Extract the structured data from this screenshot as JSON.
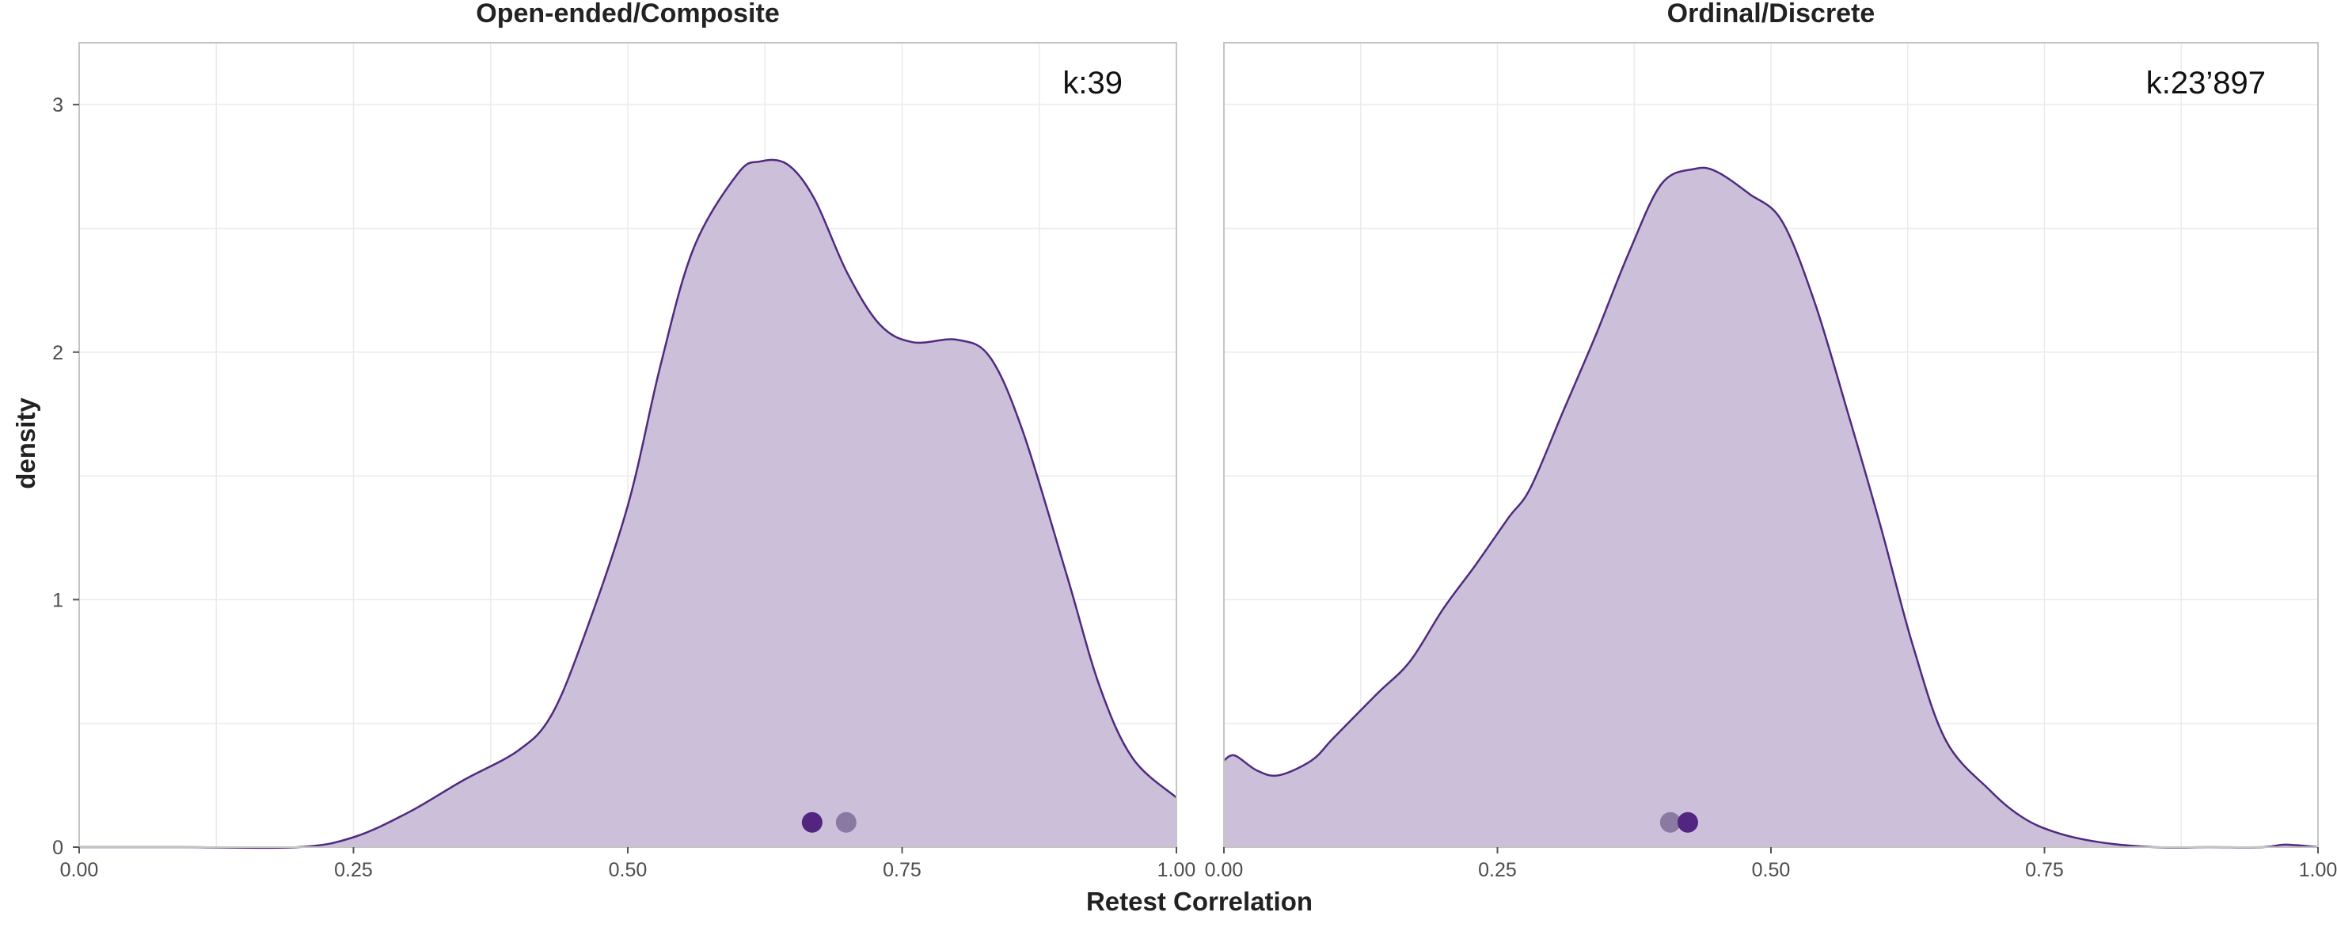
{
  "colors": {
    "fill": "#cbbfd9",
    "line": "#4f2a80",
    "point_dark": "#522680",
    "point_light": "#8a7aa3",
    "background": "#ffffff"
  },
  "axis": {
    "xlabel": "Retest Correlation",
    "ylabel": "density",
    "xlim": [
      0,
      1
    ],
    "ylim": [
      0,
      3.25
    ],
    "x_ticks": [
      0,
      0.25,
      0.5,
      0.75,
      1.0
    ],
    "x_tick_labels": [
      "0.00",
      "0.25",
      "0.50",
      "0.75",
      "1.00"
    ],
    "y_ticks": [
      0,
      1,
      2,
      3
    ],
    "y_tick_labels": [
      "0",
      "1",
      "2",
      "3"
    ]
  },
  "chart_data": [
    {
      "type": "area",
      "title": "Open-ended/Composite",
      "annotation": "k:39",
      "xlabel": "Retest Correlation",
      "ylabel": "density",
      "xlim": [
        0,
        1
      ],
      "ylim": [
        0,
        3.25
      ],
      "grid": true,
      "x": [
        0.0,
        0.1,
        0.2,
        0.25,
        0.3,
        0.35,
        0.4,
        0.43,
        0.46,
        0.5,
        0.53,
        0.56,
        0.6,
        0.62,
        0.645,
        0.67,
        0.7,
        0.73,
        0.76,
        0.8,
        0.83,
        0.86,
        0.9,
        0.93,
        0.96,
        1.0
      ],
      "y": [
        0.0,
        0.0,
        0.0,
        0.04,
        0.14,
        0.27,
        0.39,
        0.53,
        0.85,
        1.38,
        1.95,
        2.42,
        2.72,
        2.77,
        2.76,
        2.62,
        2.32,
        2.11,
        2.04,
        2.05,
        1.98,
        1.68,
        1.1,
        0.65,
        0.36,
        0.2
      ],
      "points": [
        {
          "x": 0.668,
          "y": 0.1,
          "color": "#522680"
        },
        {
          "x": 0.699,
          "y": 0.1,
          "color": "#8a7aa3"
        }
      ]
    },
    {
      "type": "area",
      "title": "Ordinal/Discrete",
      "annotation": "k:23’897",
      "xlabel": "Retest Correlation",
      "ylabel": "density",
      "xlim": [
        0,
        1
      ],
      "ylim": [
        0,
        3.25
      ],
      "grid": true,
      "x": [
        0.0,
        0.01,
        0.03,
        0.05,
        0.08,
        0.1,
        0.14,
        0.17,
        0.2,
        0.23,
        0.26,
        0.28,
        0.31,
        0.34,
        0.37,
        0.4,
        0.43,
        0.45,
        0.48,
        0.51,
        0.54,
        0.57,
        0.6,
        0.63,
        0.66,
        0.7,
        0.73,
        0.76,
        0.8,
        0.85,
        0.9,
        0.95,
        0.97,
        1.0
      ],
      "y": [
        0.35,
        0.37,
        0.31,
        0.29,
        0.35,
        0.44,
        0.62,
        0.75,
        0.96,
        1.14,
        1.33,
        1.45,
        1.76,
        2.07,
        2.4,
        2.68,
        2.74,
        2.73,
        2.64,
        2.53,
        2.2,
        1.76,
        1.3,
        0.81,
        0.43,
        0.23,
        0.12,
        0.06,
        0.02,
        0.0,
        0.0,
        0.0,
        0.01,
        0.0
      ],
      "points": [
        {
          "x": 0.408,
          "y": 0.1,
          "color": "#8a7aa3"
        },
        {
          "x": 0.424,
          "y": 0.1,
          "color": "#522680"
        }
      ]
    }
  ]
}
